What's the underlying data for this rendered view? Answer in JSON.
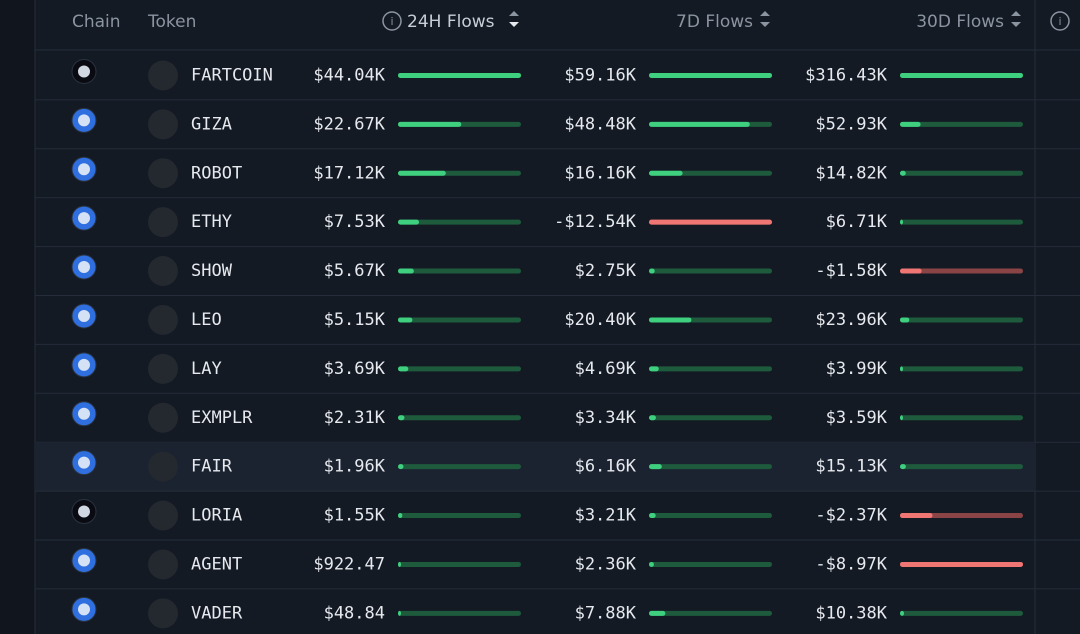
{
  "header": {
    "columns": [
      "Chain",
      "Token",
      "24H Flows",
      "7D Flows",
      "30D Flows"
    ]
  },
  "highlighted_row": 8,
  "table": {
    "rows": [
      {
        "token": "FARTCOIN",
        "chain_color": "#0a0a12",
        "flows": [
          {
            "label": "$44.04K",
            "value": 44040
          },
          {
            "label": "$59.16K",
            "value": 59160
          },
          {
            "label": "$316.43K",
            "value": 316430
          }
        ]
      },
      {
        "token": "GIZA",
        "chain_color": "#2f6fe0",
        "flows": [
          {
            "label": "$22.67K",
            "value": 22670
          },
          {
            "label": "$48.48K",
            "value": 48480
          },
          {
            "label": "$52.93K",
            "value": 52930
          }
        ]
      },
      {
        "token": "ROBOT",
        "chain_color": "#2f6fe0",
        "flows": [
          {
            "label": "$17.12K",
            "value": 17120
          },
          {
            "label": "$16.16K",
            "value": 16160
          },
          {
            "label": "$14.82K",
            "value": 14820
          }
        ]
      },
      {
        "token": "ETHY",
        "chain_color": "#2f6fe0",
        "flows": [
          {
            "label": "$7.53K",
            "value": 7530
          },
          {
            "label": "-$12.54K",
            "value": -12540
          },
          {
            "label": "$6.71K",
            "value": 6710
          }
        ]
      },
      {
        "token": "SHOW",
        "chain_color": "#2f6fe0",
        "flows": [
          {
            "label": "$5.67K",
            "value": 5670
          },
          {
            "label": "$2.75K",
            "value": 2750
          },
          {
            "label": "-$1.58K",
            "value": -1580
          }
        ]
      },
      {
        "token": "LEO",
        "chain_color": "#2f6fe0",
        "flows": [
          {
            "label": "$5.15K",
            "value": 5150
          },
          {
            "label": "$20.40K",
            "value": 20400
          },
          {
            "label": "$23.96K",
            "value": 23960
          }
        ]
      },
      {
        "token": "LAY",
        "chain_color": "#2f6fe0",
        "flows": [
          {
            "label": "$3.69K",
            "value": 3690
          },
          {
            "label": "$4.69K",
            "value": 4690
          },
          {
            "label": "$3.99K",
            "value": 3990
          }
        ]
      },
      {
        "token": "EXMPLR",
        "chain_color": "#2f6fe0",
        "flows": [
          {
            "label": "$2.31K",
            "value": 2310
          },
          {
            "label": "$3.34K",
            "value": 3340
          },
          {
            "label": "$3.59K",
            "value": 3590
          }
        ]
      },
      {
        "token": "FAIR",
        "chain_color": "#2f6fe0",
        "flows": [
          {
            "label": "$1.96K",
            "value": 1960
          },
          {
            "label": "$6.16K",
            "value": 6160
          },
          {
            "label": "$15.13K",
            "value": 15130
          }
        ]
      },
      {
        "token": "LORIA",
        "chain_color": "#0a0a12",
        "flows": [
          {
            "label": "$1.55K",
            "value": 1550
          },
          {
            "label": "$3.21K",
            "value": 3210
          },
          {
            "label": "-$2.37K",
            "value": -2370
          }
        ]
      },
      {
        "token": "AGENT",
        "chain_color": "#2f6fe0",
        "flows": [
          {
            "label": "$922.47",
            "value": 922.47
          },
          {
            "label": "$2.36K",
            "value": 2360
          },
          {
            "label": "-$8.97K",
            "value": -8970
          }
        ]
      },
      {
        "token": "VADER",
        "chain_color": "#2f6fe0",
        "flows": [
          {
            "label": "$48.84",
            "value": 48.84
          },
          {
            "label": "$7.88K",
            "value": 7880
          },
          {
            "label": "$10.38K",
            "value": 10380
          }
        ]
      }
    ]
  }
}
